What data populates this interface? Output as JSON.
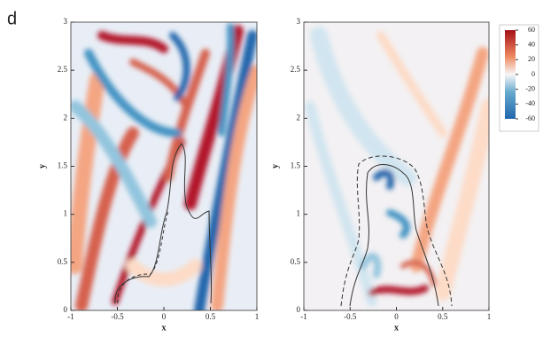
{
  "panel_label": "d",
  "chart_data": [
    {
      "type": "field",
      "xlabel": "x",
      "ylabel": "y",
      "xlim": [
        -1,
        1
      ],
      "ylim": [
        0,
        3
      ],
      "xticks": [
        -1,
        -0.5,
        0,
        0.5,
        1
      ],
      "yticks": [
        0,
        0.5,
        1,
        1.5,
        2,
        2.5,
        3
      ]
    },
    {
      "type": "field",
      "xlabel": "x",
      "ylabel": "y",
      "xlim": [
        -1,
        1
      ],
      "ylim": [
        0,
        3
      ],
      "xticks": [
        -1,
        -0.5,
        0,
        0.5,
        1
      ],
      "yticks": [
        0,
        0.5,
        1,
        1.5,
        2,
        2.5,
        3
      ]
    }
  ],
  "colorbar": {
    "lim": [
      -60,
      60
    ],
    "ticks": [
      60,
      40,
      20,
      0,
      -20,
      -40,
      -60
    ]
  }
}
